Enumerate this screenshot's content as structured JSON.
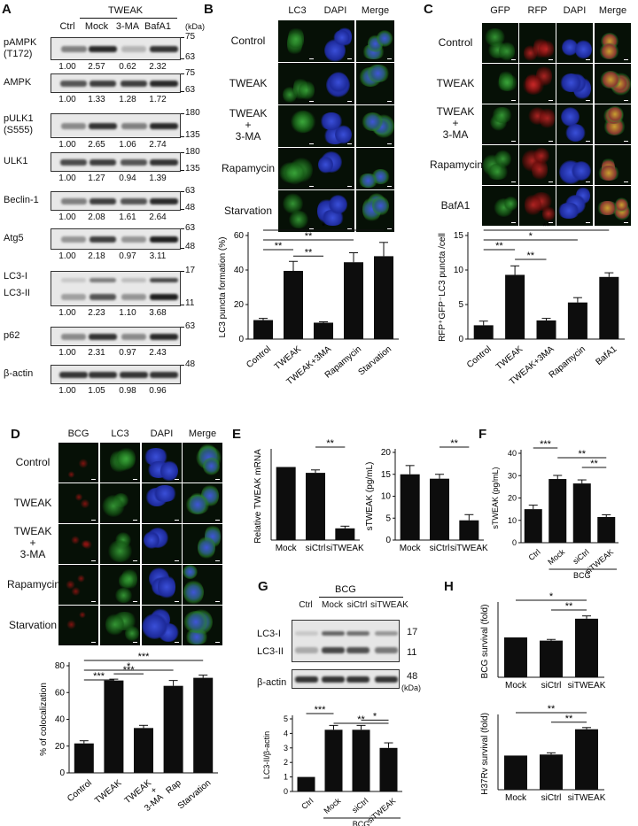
{
  "panelA": {
    "letter": "A",
    "group_label": "TWEAK",
    "lanes": [
      "Ctrl",
      "Mock",
      "3-MA",
      "BafA1"
    ],
    "unit": "(kDa)",
    "rows": [
      {
        "name": "pAMPK\n(T172)",
        "name1": "pAMPK",
        "name2": "(T172)",
        "mw": [
          "75",
          "63"
        ],
        "values": [
          "1.00",
          "2.57",
          "0.62",
          "2.32"
        ],
        "intensity": [
          0.5,
          0.9,
          0.25,
          0.85
        ]
      },
      {
        "name1": "AMPK",
        "name2": "",
        "mw": [
          "75",
          "63"
        ],
        "values": [
          "1.00",
          "1.33",
          "1.28",
          "1.72"
        ],
        "intensity": [
          0.7,
          0.8,
          0.8,
          0.9
        ]
      },
      {
        "name1": "pULK1",
        "name2": "(S555)",
        "mw": [
          "180",
          "135"
        ],
        "values": [
          "1.00",
          "2.65",
          "1.06",
          "2.74"
        ],
        "intensity": [
          0.45,
          0.85,
          0.5,
          0.9
        ]
      },
      {
        "name1": "ULK1",
        "name2": "",
        "mw": [
          "180",
          "135"
        ],
        "values": [
          "1.00",
          "1.27",
          "0.94",
          "1.39"
        ],
        "intensity": [
          0.75,
          0.8,
          0.7,
          0.85
        ]
      },
      {
        "name1": "Beclin-1",
        "name2": "",
        "mw": [
          "63",
          "48"
        ],
        "values": [
          "1.00",
          "2.08",
          "1.61",
          "2.64"
        ],
        "intensity": [
          0.5,
          0.8,
          0.7,
          0.9
        ]
      },
      {
        "name1": "Atg5",
        "name2": "",
        "mw": [
          "63",
          "48"
        ],
        "values": [
          "1.00",
          "2.18",
          "0.97",
          "3.11"
        ],
        "intensity": [
          0.4,
          0.8,
          0.4,
          0.95
        ]
      },
      {
        "name1": "LC3-I",
        "name2": "LC3-II",
        "mw": [
          "17",
          "11"
        ],
        "values": [
          "1.00",
          "2.23",
          "1.10",
          "3.68"
        ],
        "intensity": [
          0.35,
          0.7,
          0.4,
          0.95
        ]
      },
      {
        "name1": "p62",
        "name2": "",
        "mw": [
          "63",
          ""
        ],
        "values": [
          "1.00",
          "2.31",
          "0.97",
          "2.43"
        ],
        "intensity": [
          0.45,
          0.85,
          0.45,
          0.9
        ]
      },
      {
        "name1": "β-actin",
        "name2": "",
        "mw": [
          "48",
          ""
        ],
        "values": [
          "1.00",
          "1.05",
          "0.98",
          "0.96"
        ],
        "intensity": [
          0.85,
          0.85,
          0.85,
          0.85
        ]
      }
    ]
  },
  "panelB": {
    "letter": "B",
    "col_headers": [
      "LC3",
      "DAPI",
      "Merge"
    ],
    "row_labels": [
      "Control",
      "TWEAK",
      "TWEAK\n+\n3-MA",
      "Rapamycin",
      "Starvation"
    ],
    "row_label_lines": [
      [
        "Control"
      ],
      [
        "TWEAK"
      ],
      [
        "TWEAK",
        "+",
        "3-MA"
      ],
      [
        "Rapamycin"
      ],
      [
        "Starvation"
      ]
    ]
  },
  "panelC": {
    "letter": "C",
    "col_headers": [
      "GFP",
      "RFP",
      "DAPI",
      "Merge"
    ],
    "row_label_lines": [
      [
        "Control"
      ],
      [
        "TWEAK"
      ],
      [
        "TWEAK",
        "+",
        "3-MA"
      ],
      [
        "Rapamycin"
      ],
      [
        "BafA1"
      ]
    ]
  },
  "panelD": {
    "letter": "D",
    "col_headers": [
      "BCG",
      "LC3",
      "DAPI",
      "Merge"
    ],
    "row_label_lines": [
      [
        "Control"
      ],
      [
        "TWEAK"
      ],
      [
        "TWEAK",
        "+",
        "3-MA"
      ],
      [
        "Rapamycin"
      ],
      [
        "Starvation"
      ]
    ]
  },
  "panelG": {
    "letter": "G",
    "group_label": "BCG",
    "lanes": [
      "Ctrl",
      "Mock",
      "siCtrl",
      "siTWEAK"
    ],
    "rows": [
      "LC3-I",
      "LC3-II",
      "β-actin"
    ],
    "mw": [
      "17",
      "11",
      "48"
    ],
    "unit": "(kDa)"
  },
  "chart_data": [
    {
      "id": "B",
      "type": "bar",
      "categories": [
        "Control",
        "TWEAK",
        "TWEAK+3MA",
        "Rapamycin",
        "Starvation"
      ],
      "values": [
        11,
        39.5,
        9.5,
        44.5,
        48
      ],
      "errors": [
        1,
        5.5,
        0.5,
        5.5,
        8
      ],
      "ylabel": "LC3 puncta formation (%)",
      "ylim": [
        0,
        60
      ],
      "yticks": [
        "0",
        "20",
        "40",
        "60"
      ],
      "significance": [
        {
          "from": 0,
          "to": 4,
          "label": "*"
        },
        {
          "from": 0,
          "to": 3,
          "label": "**"
        },
        {
          "from": 0,
          "to": 1,
          "label": "**"
        },
        {
          "from": 1,
          "to": 2,
          "label": "**"
        }
      ]
    },
    {
      "id": "C",
      "type": "bar",
      "categories": [
        "Control",
        "TWEAK",
        "TWEAK+3MA",
        "Rapamycin",
        "BafA1"
      ],
      "values": [
        2,
        9.3,
        2.7,
        5.3,
        9
      ],
      "errors": [
        0.6,
        1.3,
        0.3,
        0.7,
        0.6
      ],
      "ylabel": "RFP⁺GFP⁻LC3 puncta /cell",
      "ylim": [
        0,
        15
      ],
      "yticks": [
        "0",
        "5",
        "10",
        "15"
      ],
      "significance": [
        {
          "from": 0,
          "to": 4,
          "label": "**"
        },
        {
          "from": 0,
          "to": 3,
          "label": "*"
        },
        {
          "from": 0,
          "to": 1,
          "label": "**"
        },
        {
          "from": 1,
          "to": 2,
          "label": "**"
        }
      ]
    },
    {
      "id": "D",
      "type": "bar",
      "categories": [
        "Control",
        "TWEAK",
        "TWEAK\n+\n3-MA",
        "Rap",
        "Starvation"
      ],
      "values": [
        22,
        69,
        33.5,
        65,
        71
      ],
      "errors": [
        2,
        1,
        2,
        4,
        2
      ],
      "ylabel": "% of colocalization",
      "ylim": [
        0,
        80
      ],
      "yticks": [
        "0",
        "20",
        "40",
        "60",
        "80"
      ],
      "significance": [
        {
          "from": 0,
          "to": 4,
          "label": "***"
        },
        {
          "from": 0,
          "to": 3,
          "label": "*"
        },
        {
          "from": 0,
          "to": 1,
          "label": "***"
        },
        {
          "from": 1,
          "to": 2,
          "label": "***"
        }
      ]
    },
    {
      "id": "E1",
      "type": "bar",
      "categories": [
        "Mock",
        "siCtrl",
        "siTWEAK"
      ],
      "values": [
        1.0,
        0.92,
        0.16
      ],
      "errors": [
        0,
        0.04,
        0.03
      ],
      "ylabel": "Relative TWEAK mRNA",
      "ylim": [
        0,
        1.2
      ],
      "yticks": [],
      "significance": [
        {
          "from": 1,
          "to": 2,
          "label": "**"
        }
      ]
    },
    {
      "id": "E2",
      "type": "bar",
      "categories": [
        "Mock",
        "siCtrl",
        "siTWEAK"
      ],
      "values": [
        15,
        14,
        4.5
      ],
      "errors": [
        2,
        1,
        1.3
      ],
      "ylabel": "sTWEAK (pg/mL)",
      "ylim": [
        0,
        20
      ],
      "yticks": [
        "0",
        "5",
        "10",
        "15",
        "20"
      ],
      "significance": [
        {
          "from": 1,
          "to": 2,
          "label": "**"
        }
      ]
    },
    {
      "id": "F",
      "type": "bar",
      "categories": [
        "Ctrl",
        "Mock",
        "siCtrl",
        "siTWEAK"
      ],
      "values": [
        15,
        28.5,
        26.5,
        11.5
      ],
      "errors": [
        1.8,
        1.6,
        1.6,
        1
      ],
      "ylabel": "sTWEAK (pg/mL)",
      "ylim": [
        0,
        40
      ],
      "yticks": [
        "0",
        "10",
        "20",
        "30",
        "40"
      ],
      "group_label": "BCG",
      "significance": [
        {
          "from": 0,
          "to": 1,
          "label": "***"
        },
        {
          "from": 1,
          "to": 3,
          "label": "**"
        },
        {
          "from": 2,
          "to": 3,
          "label": "**"
        }
      ]
    },
    {
      "id": "G",
      "type": "bar",
      "categories": [
        "Ctrl",
        "Mock",
        "siCtrl",
        "siTWEAK"
      ],
      "values": [
        1,
        4.25,
        4.25,
        3
      ],
      "errors": [
        0,
        0.3,
        0.3,
        0.35
      ],
      "ylabel": "LC3-II/β-actin",
      "ylim": [
        0,
        5
      ],
      "yticks": [
        "0",
        "1",
        "2",
        "3",
        "4",
        "5"
      ],
      "group_label": "BCG",
      "significance": [
        {
          "from": 0,
          "to": 1,
          "label": "***"
        },
        {
          "from": 1,
          "to": 3,
          "label": "**"
        },
        {
          "from": 2,
          "to": 3,
          "label": "*"
        }
      ]
    },
    {
      "id": "H1",
      "type": "bar",
      "categories": [
        "Mock",
        "siCtrl",
        "siTWEAK"
      ],
      "values": [
        1.0,
        0.92,
        1.47
      ],
      "errors": [
        0,
        0.03,
        0.07
      ],
      "ylabel": "BCG survival (fold)",
      "ylim": [
        0,
        1.8
      ],
      "yticks": [],
      "significance": [
        {
          "from": 0,
          "to": 2,
          "label": "*"
        },
        {
          "from": 1,
          "to": 2,
          "label": "**"
        }
      ]
    },
    {
      "id": "H2",
      "type": "bar",
      "categories": [
        "Mock",
        "siCtrl",
        "siTWEAK"
      ],
      "values": [
        1.0,
        1.03,
        1.77
      ],
      "errors": [
        0,
        0.05,
        0.05
      ],
      "ylabel": "H37Rv survival (fold)",
      "ylim": [
        0,
        2.1
      ],
      "yticks": [],
      "significance": [
        {
          "from": 0,
          "to": 2,
          "label": "**"
        },
        {
          "from": 1,
          "to": 2,
          "label": "**"
        }
      ]
    }
  ],
  "panel_letters": {
    "E": "E",
    "F": "F",
    "H": "H"
  }
}
